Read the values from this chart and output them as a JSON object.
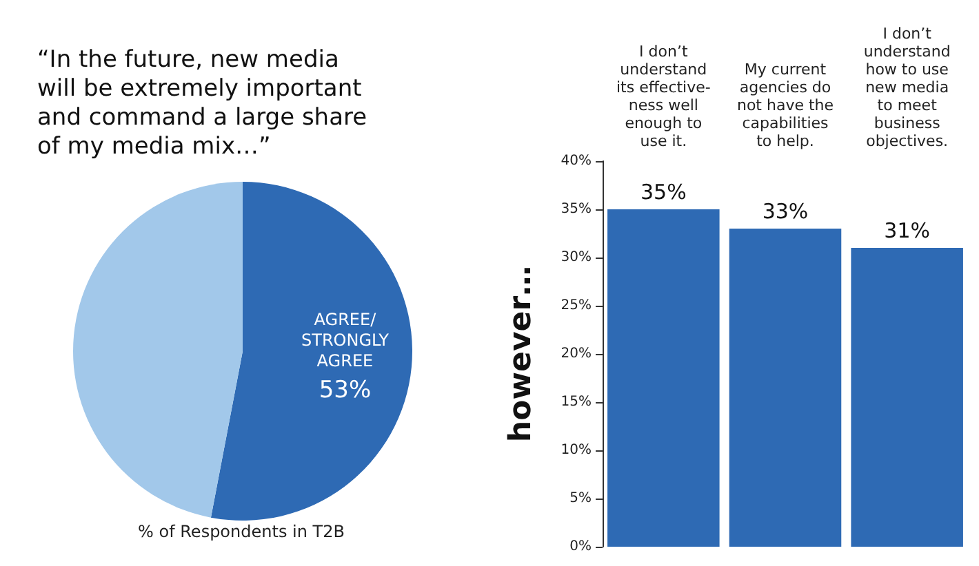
{
  "chart_data": [
    {
      "type": "pie",
      "title": "“In the future, new media\nwill be extremely important\nand command a large share\nof my media mix…”",
      "categories": [
        "AGREE/\nSTRONGLY\nAGREE",
        null
      ],
      "values": [
        53,
        47
      ],
      "colors": [
        "#2e6ab4",
        "#a2c8ea"
      ],
      "value_labels": [
        "53%",
        null
      ],
      "annotations": [
        "% of Respondents in T2B"
      ]
    },
    {
      "type": "bar",
      "ylabel": "however…",
      "categories": [
        "I don’t\nunderstand\nits effective-\nness well\nenough to\nuse it.",
        "My current\nagencies do\nnot have the\ncapabilities\nto help.",
        "I don’t\nunderstand\nhow to use\nnew media\nto meet\nbusiness\nobjectives."
      ],
      "values": [
        35,
        33,
        31
      ],
      "color": "#2e6ab4",
      "value_labels": [
        "35%",
        "33%",
        "31%"
      ],
      "ylim": [
        0,
        40
      ],
      "yticks": [
        {
          "value": 0,
          "label": "0%"
        },
        {
          "value": 5,
          "label": "5%"
        },
        {
          "value": 10,
          "label": "10%"
        },
        {
          "value": 15,
          "label": "15%"
        },
        {
          "value": 20,
          "label": "20%"
        },
        {
          "value": 25,
          "label": "25%"
        },
        {
          "value": 30,
          "label": "30%"
        },
        {
          "value": 35,
          "label": "35%"
        },
        {
          "value": 40,
          "label": "40%"
        }
      ]
    }
  ]
}
